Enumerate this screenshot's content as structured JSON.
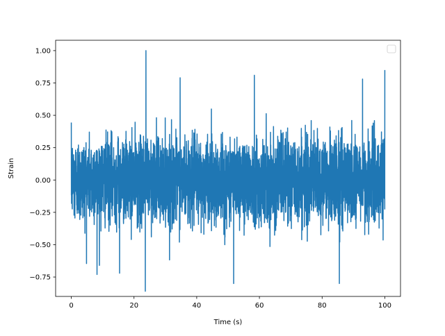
{
  "chart_data": {
    "type": "line",
    "title": "",
    "xlabel": "Time (s)",
    "ylabel": "Strain",
    "xlim": [
      -5,
      105
    ],
    "ylim": [
      -0.9,
      1.08
    ],
    "x_ticks": [
      0,
      20,
      40,
      60,
      80,
      100
    ],
    "x_tick_labels": [
      "0",
      "20",
      "40",
      "60",
      "80",
      "100"
    ],
    "y_ticks": [
      -0.75,
      -0.5,
      -0.25,
      0.0,
      0.25,
      0.5,
      0.75,
      1.0
    ],
    "y_tick_labels": [
      "−0.75",
      "−0.50",
      "−0.25",
      "0.00",
      "0.25",
      "0.50",
      "0.75",
      "1.00"
    ],
    "grid": false,
    "legend": {
      "placement": "top-right",
      "entries": []
    },
    "series": [
      {
        "color": "#1f77b4",
        "x_start": 0,
        "x_end": 100,
        "y_min": -0.86,
        "y_max": 1.0,
        "typical_range": [
          -0.45,
          0.45
        ],
        "peaks": [
          {
            "x": 23.8,
            "y": 1.0
          },
          {
            "x": 100.0,
            "y": 0.85
          },
          {
            "x": 58.4,
            "y": 0.81
          },
          {
            "x": 34.7,
            "y": 0.79
          },
          {
            "x": 92.9,
            "y": 0.78
          },
          {
            "x": 23.6,
            "y": -0.86
          },
          {
            "x": 51.8,
            "y": -0.8
          },
          {
            "x": 85.5,
            "y": -0.8
          },
          {
            "x": 8.2,
            "y": -0.73
          },
          {
            "x": 15.4,
            "y": -0.72
          }
        ]
      }
    ]
  }
}
